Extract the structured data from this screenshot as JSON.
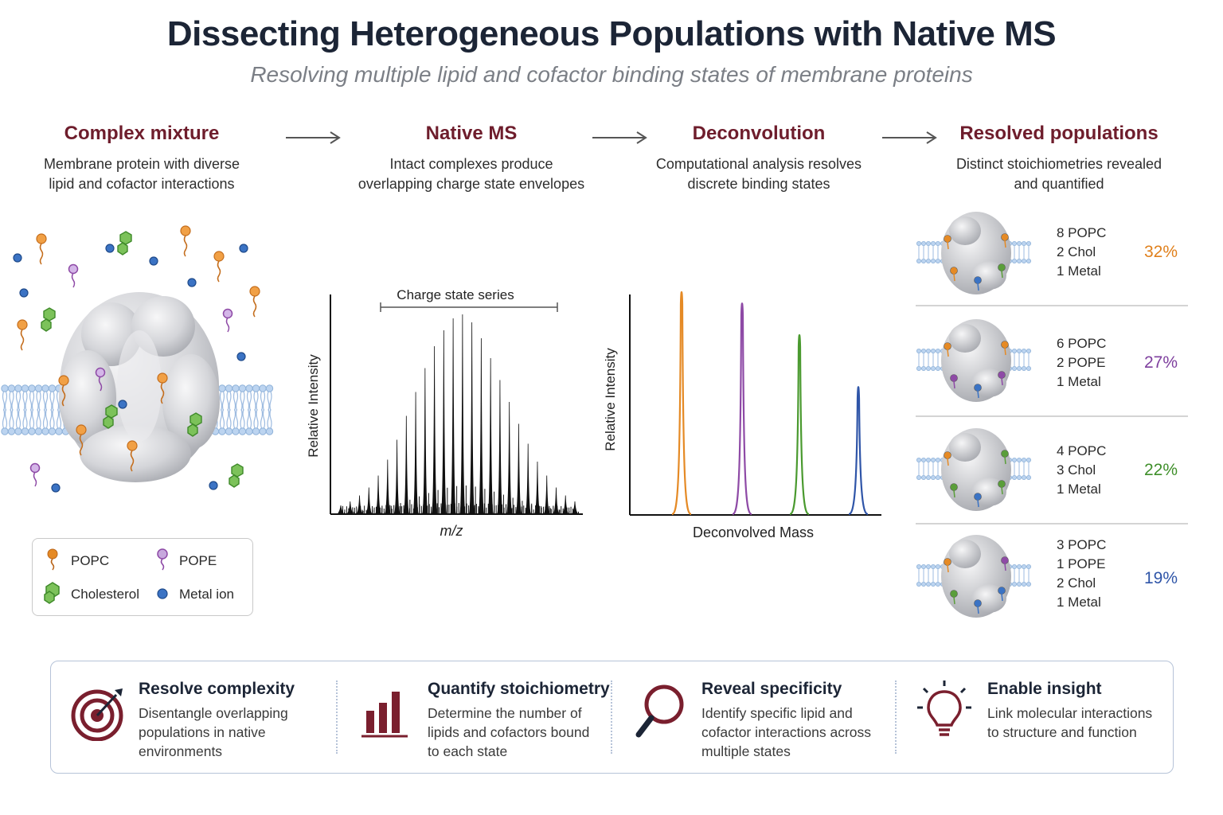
{
  "header": {
    "title": "Dissecting Heterogeneous Populations with Native MS",
    "subtitle": "Resolving multiple lipid and cofactor binding states of membrane proteins"
  },
  "steps": [
    {
      "title": "Complex mixture",
      "desc_lines": [
        "Membrane protein with diverse",
        "lipid and cofactor interactions"
      ]
    },
    {
      "title": "Native MS",
      "desc_lines": [
        "Intact complexes produce",
        "overlapping charge state envelopes"
      ]
    },
    {
      "title": "Deconvolution",
      "desc_lines": [
        "Computational analysis resolves",
        "discrete binding states"
      ]
    },
    {
      "title": "Resolved populations",
      "desc_lines": [
        "Distinct stoichiometries revealed",
        "and quantified"
      ]
    }
  ],
  "legend": {
    "items": [
      {
        "label": "POPC",
        "color": "#e58a25",
        "icon": "popc-lipid-icon"
      },
      {
        "label": "POPE",
        "color": "#8e4aa6",
        "icon": "pope-lipid-icon"
      },
      {
        "label": "Cholesterol",
        "color": "#5a9e3a",
        "icon": "cholesterol-icon"
      },
      {
        "label": "Metal ion",
        "color": "#2f66b0",
        "icon": "metal-ion-icon"
      }
    ]
  },
  "ms_chart": {
    "bracket_label": "Charge state series",
    "ylabel": "Relative Intensity",
    "xlabel": "m/z"
  },
  "chart_data": [
    {
      "type": "line",
      "title": "",
      "annotation": "Charge state series",
      "xlabel": "m/z",
      "ylabel": "Relative Intensity",
      "series": [
        {
          "values": [
            0.04,
            0.06,
            0.09,
            0.13,
            0.19,
            0.27,
            0.37,
            0.49,
            0.61,
            0.73,
            0.84,
            0.92,
            0.98,
            1.0,
            0.96,
            0.88,
            0.78,
            0.67,
            0.56,
            0.45,
            0.35,
            0.26,
            0.19,
            0.13,
            0.09,
            0.06
          ]
        }
      ]
    },
    {
      "type": "line",
      "title": "",
      "xlabel": "Deconvolved Mass",
      "ylabel": "Relative Intensity",
      "series": [
        {
          "color": "#e58a25",
          "value": 1.0
        },
        {
          "color": "#8e4aa6",
          "value": 0.95
        },
        {
          "color": "#4a9a2f",
          "value": 0.81
        },
        {
          "color": "#2f55a8",
          "value": 0.58
        }
      ]
    }
  ],
  "deconv_chart": {
    "ylabel": "Relative Intensity",
    "xlabel": "Deconvolved Mass"
  },
  "populations": [
    {
      "lines": [
        "8 POPC",
        "2 Chol",
        "1 Metal"
      ],
      "percent": "32%",
      "color": "#e0801c"
    },
    {
      "lines": [
        "6 POPC",
        "2 POPE",
        "1 Metal"
      ],
      "percent": "27%",
      "color": "#7e3f9e"
    },
    {
      "lines": [
        "4 POPC",
        "3 Chol",
        "1 Metal"
      ],
      "percent": "22%",
      "color": "#3f8f2a"
    },
    {
      "lines": [
        "3 POPC",
        "1 POPE",
        "2 Chol",
        "1 Metal"
      ],
      "percent": "19%",
      "color": "#2f55a8"
    }
  ],
  "footer": [
    {
      "title": "Resolve complexity",
      "desc_lines": [
        "Disentangle overlapping",
        "populations in native",
        "environments"
      ],
      "icon": "target-icon"
    },
    {
      "title": "Quantify stoichiometry",
      "desc_lines": [
        "Determine the number of",
        "lipids and cofactors bound",
        "to each state"
      ],
      "icon": "bar-chart-icon"
    },
    {
      "title": "Reveal specificity",
      "desc_lines": [
        "Identify specific lipid and",
        "cofactor interactions across",
        "multiple states"
      ],
      "icon": "magnifier-icon"
    },
    {
      "title": "Enable insight",
      "desc_lines": [
        "Link molecular interactions",
        "to structure and function"
      ],
      "icon": "lightbulb-icon"
    }
  ],
  "colors": {
    "accent": "#6e1d2c",
    "footer_icon": "#7a1f2e",
    "footer_border": "#b6c3d8"
  }
}
